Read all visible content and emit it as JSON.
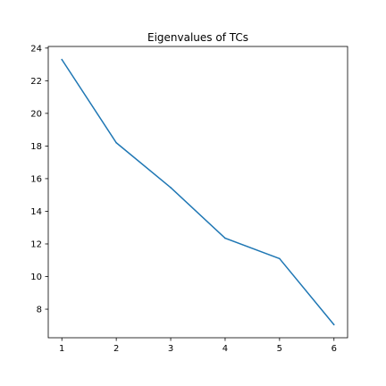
{
  "chart_data": {
    "type": "line",
    "title": "Eigenvalues of TCs",
    "xlabel": "",
    "ylabel": "",
    "x": [
      1,
      2,
      3,
      4,
      5,
      6
    ],
    "series": [
      {
        "values": [
          23.3,
          18.2,
          15.45,
          12.35,
          11.1,
          7.05
        ],
        "color": "#1f77b4"
      }
    ],
    "xticks": [
      1,
      2,
      3,
      4,
      5,
      6
    ],
    "yticks": [
      8,
      10,
      12,
      14,
      16,
      18,
      20,
      22,
      24
    ],
    "xlim": [
      0.75,
      6.25
    ],
    "ylim": [
      6.25,
      24.1
    ],
    "grid": false
  }
}
